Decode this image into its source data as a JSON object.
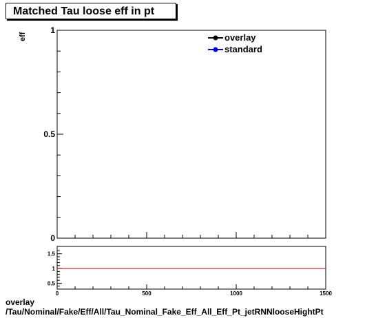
{
  "title": "Matched Tau loose eff in pt",
  "footer": {
    "line1": "overlay",
    "line2": "/Tau/Nominal/Fake/Eff/All/Tau_Nominal_Fake_Eff_All_Eff_Pt_jetRNNlooseHightPt"
  },
  "colors": {
    "overlay": "#000000",
    "standard": "#0000ff",
    "ratio_line": "#cc0000"
  },
  "chart_data": [
    {
      "type": "line",
      "title": "Matched Tau loose eff in pt",
      "ylabel": "eff",
      "xlim": [
        0,
        1500
      ],
      "ylim": [
        0,
        1
      ],
      "y_ticks": [
        0,
        0.5,
        1
      ],
      "y_tick_labels": [
        "0",
        "0.5",
        "1"
      ],
      "legend": {
        "placement": "top-right",
        "entries": [
          "overlay",
          "standard"
        ]
      },
      "series": [
        {
          "name": "overlay",
          "x": [],
          "y": []
        },
        {
          "name": "standard",
          "x": [],
          "y": []
        }
      ]
    },
    {
      "type": "line",
      "xlim": [
        0,
        1500
      ],
      "ylim": [
        0.3,
        1.75
      ],
      "x_ticks": [
        0,
        500,
        1000,
        1500
      ],
      "x_tick_labels": [
        "0",
        "500",
        "1000",
        "1500"
      ],
      "y_ticks": [
        0.5,
        1,
        1.5
      ],
      "y_tick_labels": [
        "0.5",
        "1",
        "1.5"
      ],
      "reference_line": 1
    }
  ]
}
